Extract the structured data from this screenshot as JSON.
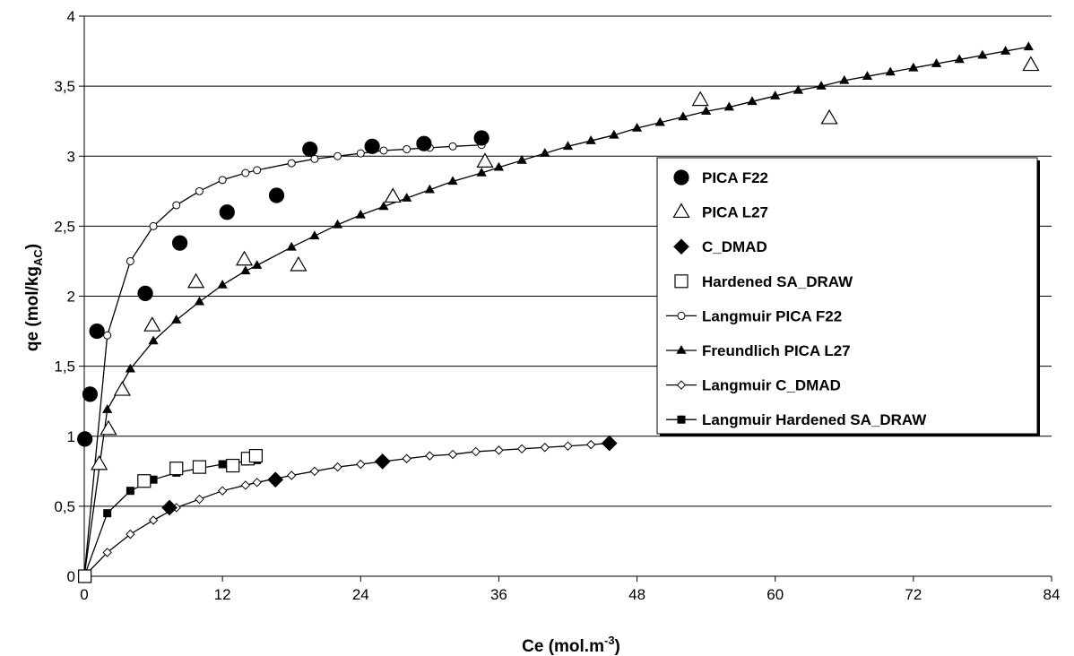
{
  "chart_data": {
    "type": "scatter",
    "title": "",
    "xlabel": "Ce (mol.m",
    "xlabel_sup": "-3",
    "xlabel_end": ")",
    "ylabel": "qe (mol/kg",
    "ylabel_sub": "AC",
    "ylabel_end": ")",
    "xlim": [
      0,
      84
    ],
    "ylim": [
      0,
      4
    ],
    "x_ticks": [
      0,
      12,
      24,
      36,
      48,
      60,
      72,
      84
    ],
    "x_tick_labels": [
      "0",
      "12",
      "24",
      "36",
      "48",
      "60",
      "72",
      "84"
    ],
    "y_ticks": [
      0,
      0.5,
      1,
      1.5,
      2,
      2.5,
      3,
      3.5,
      4
    ],
    "y_tick_labels": [
      "0",
      "0,5",
      "1",
      "1,5",
      "2",
      "2,5",
      "3",
      "3,5",
      "4"
    ],
    "grid": "horizontal",
    "legend_position": "right",
    "series": [
      {
        "name": "PICA F22",
        "kind": "points",
        "marker": "circle-filled",
        "x": [
          0.05,
          0.5,
          1.1,
          5.3,
          8.3,
          12.4,
          16.7,
          19.6,
          25.0,
          29.5,
          34.5
        ],
        "y": [
          0.98,
          1.3,
          1.75,
          2.02,
          2.38,
          2.6,
          2.72,
          3.05,
          3.07,
          3.09,
          3.13
        ]
      },
      {
        "name": "PICA L27",
        "kind": "points",
        "marker": "triangle-open",
        "x": [
          1.3,
          2.1,
          3.3,
          5.9,
          9.7,
          13.9,
          18.6,
          26.8,
          34.8,
          53.5,
          64.7,
          82.2
        ],
        "y": [
          0.8,
          1.05,
          1.33,
          1.79,
          2.1,
          2.26,
          2.22,
          2.71,
          2.96,
          3.4,
          3.27,
          3.65
        ]
      },
      {
        "name": "C_DMAD",
        "kind": "points",
        "marker": "diamond-filled",
        "x": [
          7.4,
          16.6,
          25.9,
          45.6
        ],
        "y": [
          0.49,
          0.69,
          0.82,
          0.95
        ]
      },
      {
        "name": "Hardened SA_DRAW",
        "kind": "points",
        "marker": "square-open",
        "x": [
          0.05,
          5.2,
          8.0,
          10.0,
          12.9,
          14.2,
          14.9
        ],
        "y": [
          0.0,
          0.68,
          0.77,
          0.78,
          0.79,
          0.84,
          0.86
        ]
      },
      {
        "name": "Langmuir PICA F22",
        "kind": "line",
        "marker": "circle-open",
        "x": [
          0,
          2,
          4,
          6,
          8,
          10,
          12,
          14,
          15,
          18,
          20,
          22,
          24,
          26,
          28,
          30,
          32,
          34.5
        ],
        "y": [
          0,
          1.72,
          2.25,
          2.5,
          2.65,
          2.75,
          2.83,
          2.88,
          2.9,
          2.95,
          2.98,
          3.0,
          3.02,
          3.04,
          3.05,
          3.06,
          3.07,
          3.08
        ]
      },
      {
        "name": "Freundlich PICA L27",
        "kind": "line",
        "marker": "triangle-filled",
        "x": [
          0,
          2,
          4,
          6,
          8,
          10,
          12,
          14,
          15,
          18,
          20,
          22,
          24,
          26,
          28,
          30,
          32,
          34.5,
          36,
          38,
          40,
          42,
          44,
          46,
          48,
          50,
          52,
          54,
          56,
          58,
          60,
          62,
          64,
          66,
          68,
          70,
          72,
          74,
          76,
          78,
          80,
          82
        ],
        "y": [
          0,
          1.19,
          1.48,
          1.68,
          1.83,
          1.96,
          2.08,
          2.18,
          2.22,
          2.35,
          2.43,
          2.51,
          2.58,
          2.64,
          2.7,
          2.76,
          2.82,
          2.88,
          2.92,
          2.97,
          3.02,
          3.07,
          3.11,
          3.15,
          3.2,
          3.24,
          3.28,
          3.32,
          3.35,
          3.39,
          3.43,
          3.47,
          3.5,
          3.54,
          3.57,
          3.6,
          3.63,
          3.66,
          3.69,
          3.72,
          3.75,
          3.78
        ]
      },
      {
        "name": "Langmuir C_DMAD",
        "kind": "line",
        "marker": "diamond-open",
        "x": [
          0,
          2,
          4,
          6,
          8,
          10,
          12,
          14,
          15,
          18,
          20,
          22,
          24,
          26,
          28,
          30,
          32,
          34,
          36,
          38,
          40,
          42,
          44,
          45.6
        ],
        "y": [
          0,
          0.17,
          0.3,
          0.4,
          0.49,
          0.55,
          0.61,
          0.65,
          0.67,
          0.72,
          0.75,
          0.78,
          0.8,
          0.82,
          0.84,
          0.86,
          0.87,
          0.89,
          0.9,
          0.91,
          0.92,
          0.93,
          0.94,
          0.95
        ]
      },
      {
        "name": "Langmuir Hardened SA_DRAW",
        "kind": "line",
        "marker": "square-filled",
        "x": [
          0,
          2,
          4,
          6,
          8,
          12,
          14,
          15
        ],
        "y": [
          0,
          0.45,
          0.61,
          0.69,
          0.74,
          0.8,
          0.82,
          0.83
        ]
      }
    ]
  }
}
